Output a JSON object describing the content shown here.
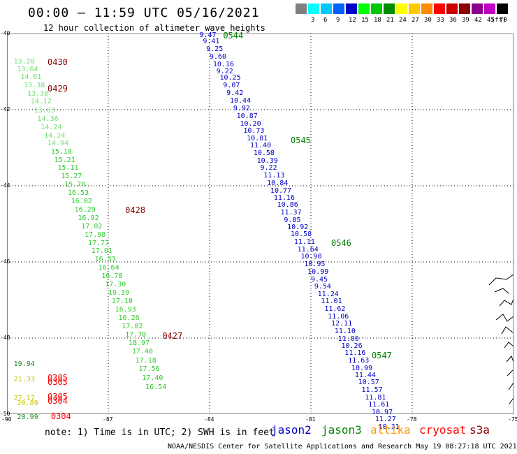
{
  "header": {
    "title": "00:00 – 11:59 UTC 05/16/2021",
    "subtitle": "12 hour collection of altimeter wave heights"
  },
  "legend": {
    "unit": "(ft)",
    "bins": [
      {
        "color": "#808080",
        "label": ""
      },
      {
        "color": "#00ffff",
        "label": "3"
      },
      {
        "color": "#00c8ff",
        "label": "6"
      },
      {
        "color": "#0064ff",
        "label": "9"
      },
      {
        "color": "#0000cd",
        "label": "12"
      },
      {
        "color": "#00ff00",
        "label": "15"
      },
      {
        "color": "#00c800",
        "label": "18"
      },
      {
        "color": "#008c00",
        "label": "21"
      },
      {
        "color": "#ffff00",
        "label": "24"
      },
      {
        "color": "#ffc800",
        "label": "27"
      },
      {
        "color": "#ff8c00",
        "label": "30"
      },
      {
        "color": "#ff0000",
        "label": "33"
      },
      {
        "color": "#c80000",
        "label": "36"
      },
      {
        "color": "#8b0000",
        "label": "39"
      },
      {
        "color": "#8b008b",
        "label": "42"
      },
      {
        "color": "#c000c0",
        "label": "45"
      },
      {
        "color": "#000000",
        "label": "70"
      }
    ]
  },
  "map": {
    "lon_min": -90,
    "lon_max": -75,
    "lat_min": -50,
    "lat_max": -40,
    "lon_ticks": [
      "-90",
      "-87",
      "-84",
      "-81",
      "-78",
      "-75"
    ],
    "lat_ticks": [
      "-40",
      "-42",
      "-44",
      "-46",
      "-48",
      "-50"
    ]
  },
  "tracks": [
    {
      "satellite": "jason3",
      "color": "#70e070",
      "points": [
        {
          "lon": -89.8,
          "lat": -40.75,
          "swh": "13.20"
        },
        {
          "lon": -89.7,
          "lat": -40.95,
          "swh": "13.64"
        },
        {
          "lon": -89.6,
          "lat": -41.15,
          "swh": "14.61"
        },
        {
          "lon": -89.5,
          "lat": -41.38,
          "swh": "13.38"
        },
        {
          "lon": -89.4,
          "lat": -41.6,
          "swh": "13.38"
        },
        {
          "lon": -89.3,
          "lat": -41.8,
          "swh": "14.12"
        },
        {
          "lon": -89.2,
          "lat": -42.03,
          "swh": "13.63"
        },
        {
          "lon": -89.1,
          "lat": -42.25,
          "swh": "14.36"
        },
        {
          "lon": -89.0,
          "lat": -42.47,
          "swh": "14.24"
        },
        {
          "lon": -88.9,
          "lat": -42.69,
          "swh": "14.24"
        },
        {
          "lon": -88.8,
          "lat": -42.9,
          "swh": "14.94"
        }
      ]
    },
    {
      "satellite": "jason3",
      "color": "#2ecc2e",
      "points": [
        {
          "lon": -88.7,
          "lat": -43.12,
          "swh": "15.18"
        },
        {
          "lon": -88.6,
          "lat": -43.34,
          "swh": "15.21"
        },
        {
          "lon": -88.5,
          "lat": -43.55,
          "swh": "15.11"
        },
        {
          "lon": -88.4,
          "lat": -43.76,
          "swh": "15.27"
        },
        {
          "lon": -88.3,
          "lat": -43.98,
          "swh": "15.70"
        },
        {
          "lon": -88.2,
          "lat": -44.2,
          "swh": "16.53"
        },
        {
          "lon": -88.1,
          "lat": -44.42,
          "swh": "16.02"
        },
        {
          "lon": -88.0,
          "lat": -44.64,
          "swh": "16.29"
        },
        {
          "lon": -87.9,
          "lat": -44.86,
          "swh": "16.92"
        },
        {
          "lon": -87.8,
          "lat": -45.08,
          "swh": "17.02"
        },
        {
          "lon": -87.7,
          "lat": -45.3,
          "swh": "17.98"
        },
        {
          "lon": -87.6,
          "lat": -45.52,
          "swh": "17.77"
        },
        {
          "lon": -87.5,
          "lat": -45.73,
          "swh": "17.01"
        },
        {
          "lon": -87.4,
          "lat": -45.95,
          "swh": "16.33"
        },
        {
          "lon": -87.3,
          "lat": -46.17,
          "swh": "16.64"
        },
        {
          "lon": -87.2,
          "lat": -46.38,
          "swh": "16.78"
        },
        {
          "lon": -87.1,
          "lat": -46.6,
          "swh": "17.30"
        },
        {
          "lon": -87.0,
          "lat": -46.82,
          "swh": "19.39"
        },
        {
          "lon": -86.9,
          "lat": -47.04,
          "swh": "17.10"
        },
        {
          "lon": -86.8,
          "lat": -47.26,
          "swh": "16.93"
        },
        {
          "lon": -86.7,
          "lat": -47.48,
          "swh": "16.26"
        },
        {
          "lon": -86.6,
          "lat": -47.71,
          "swh": "17.02"
        },
        {
          "lon": -86.5,
          "lat": -47.93,
          "swh": "17.70"
        },
        {
          "lon": -86.4,
          "lat": -48.15,
          "swh": "18.97"
        },
        {
          "lon": -86.3,
          "lat": -48.37,
          "swh": "17.40"
        },
        {
          "lon": -86.2,
          "lat": -48.6,
          "swh": "17.18"
        },
        {
          "lon": -86.1,
          "lat": -48.83,
          "swh": "17.56"
        },
        {
          "lon": -86.0,
          "lat": -49.07,
          "swh": "17.40"
        },
        {
          "lon": -85.9,
          "lat": -49.3,
          "swh": "16.54"
        }
      ]
    },
    {
      "satellite": "jason2",
      "color": "#0000c8",
      "points": [
        {
          "lon": -84.3,
          "lat": -40.05,
          "swh": "9.47"
        },
        {
          "lon": -84.2,
          "lat": -40.22,
          "swh": "9.41"
        },
        {
          "lon": -84.1,
          "lat": -40.42,
          "swh": "9.25"
        },
        {
          "lon": -84.0,
          "lat": -40.62,
          "swh": "9.60"
        },
        {
          "lon": -83.9,
          "lat": -40.82,
          "swh": "10.16"
        },
        {
          "lon": -83.8,
          "lat": -41.0,
          "swh": "9.22"
        },
        {
          "lon": -83.7,
          "lat": -41.18,
          "swh": "10.25"
        },
        {
          "lon": -83.6,
          "lat": -41.38,
          "swh": "9.07"
        },
        {
          "lon": -83.5,
          "lat": -41.58,
          "swh": "9.42"
        },
        {
          "lon": -83.4,
          "lat": -41.78,
          "swh": "10.44"
        },
        {
          "lon": -83.3,
          "lat": -41.98,
          "swh": "9.92"
        },
        {
          "lon": -83.2,
          "lat": -42.18,
          "swh": "10.87"
        },
        {
          "lon": -83.1,
          "lat": -42.38,
          "swh": "10.20"
        },
        {
          "lon": -83.0,
          "lat": -42.57,
          "swh": "10.73"
        },
        {
          "lon": -82.9,
          "lat": -42.77,
          "swh": "10.81"
        },
        {
          "lon": -82.8,
          "lat": -42.96,
          "swh": "11.40"
        },
        {
          "lon": -82.7,
          "lat": -43.16,
          "swh": "10.58"
        },
        {
          "lon": -82.6,
          "lat": -43.35,
          "swh": "10.39"
        },
        {
          "lon": -82.5,
          "lat": -43.55,
          "swh": "9.22"
        },
        {
          "lon": -82.4,
          "lat": -43.75,
          "swh": "11.13"
        },
        {
          "lon": -82.3,
          "lat": -43.94,
          "swh": "10.84"
        },
        {
          "lon": -82.2,
          "lat": -44.14,
          "swh": "10.77"
        },
        {
          "lon": -82.1,
          "lat": -44.33,
          "swh": "11.16"
        },
        {
          "lon": -82.0,
          "lat": -44.52,
          "swh": "10.86"
        },
        {
          "lon": -81.9,
          "lat": -44.71,
          "swh": "11.37"
        },
        {
          "lon": -81.8,
          "lat": -44.91,
          "swh": "9.85"
        },
        {
          "lon": -81.7,
          "lat": -45.1,
          "swh": "10.92"
        },
        {
          "lon": -81.6,
          "lat": -45.29,
          "swh": "10.58"
        },
        {
          "lon": -81.5,
          "lat": -45.49,
          "swh": "11.11"
        },
        {
          "lon": -81.4,
          "lat": -45.68,
          "swh": "11.64"
        },
        {
          "lon": -81.3,
          "lat": -45.87,
          "swh": "10.90"
        },
        {
          "lon": -81.2,
          "lat": -46.07,
          "swh": "10.95"
        },
        {
          "lon": -81.1,
          "lat": -46.27,
          "swh": "10.99"
        },
        {
          "lon": -81.0,
          "lat": -46.47,
          "swh": "9.45"
        },
        {
          "lon": -80.9,
          "lat": -46.66,
          "swh": "9.54"
        },
        {
          "lon": -80.8,
          "lat": -46.86,
          "swh": "11.24"
        },
        {
          "lon": -80.7,
          "lat": -47.05,
          "swh": "11.01"
        },
        {
          "lon": -80.6,
          "lat": -47.25,
          "swh": "11.62"
        },
        {
          "lon": -80.5,
          "lat": -47.45,
          "swh": "11.06"
        },
        {
          "lon": -80.4,
          "lat": -47.64,
          "swh": "12.11"
        },
        {
          "lon": -80.3,
          "lat": -47.84,
          "swh": "11.10"
        },
        {
          "lon": -80.2,
          "lat": -48.03,
          "swh": "11.00"
        },
        {
          "lon": -80.1,
          "lat": -48.22,
          "swh": "10.26"
        },
        {
          "lon": -80.0,
          "lat": -48.41,
          "swh": "11.16"
        },
        {
          "lon": -79.9,
          "lat": -48.6,
          "swh": "11.63"
        },
        {
          "lon": -79.8,
          "lat": -48.8,
          "swh": "10.99"
        },
        {
          "lon": -79.7,
          "lat": -48.99,
          "swh": "11.44"
        },
        {
          "lon": -79.6,
          "lat": -49.18,
          "swh": "10.57"
        },
        {
          "lon": -79.5,
          "lat": -49.38,
          "swh": "11.57"
        },
        {
          "lon": -79.4,
          "lat": -49.58,
          "swh": "11.81"
        },
        {
          "lon": -79.3,
          "lat": -49.77,
          "swh": "11.61"
        },
        {
          "lon": -79.2,
          "lat": -49.96,
          "swh": "10.97"
        },
        {
          "lon": -79.1,
          "lat": -50.15,
          "swh": "11.27"
        },
        {
          "lon": -79.0,
          "lat": -50.35,
          "swh": "10.31"
        }
      ]
    },
    {
      "satellite": "cryosat",
      "color": "#208a20",
      "points": [
        {
          "lon": -89.8,
          "lat": -48.7,
          "swh": "19.94"
        }
      ]
    },
    {
      "satellite": "s3a",
      "color": "#c8c800",
      "points": [
        {
          "lon": -89.8,
          "lat": -49.1,
          "swh": "21.33"
        },
        {
          "lon": -89.8,
          "lat": -49.6,
          "swh": "27.17"
        },
        {
          "lon": -89.7,
          "lat": -49.72,
          "swh": "20.89"
        }
      ]
    },
    {
      "satellite": "s3a",
      "color": "#228b22",
      "points": [
        {
          "lon": -89.7,
          "lat": -50.1,
          "swh": "20.99"
        }
      ]
    }
  ],
  "time_labels": [
    {
      "text": "0430",
      "lon": -88.8,
      "lat": -40.75,
      "color": "#8b0000"
    },
    {
      "text": "0429",
      "lon": -88.8,
      "lat": -41.45,
      "color": "#8b0000"
    },
    {
      "text": "0428",
      "lon": -86.5,
      "lat": -44.65,
      "color": "#8b0000"
    },
    {
      "text": "0427",
      "lon": -85.4,
      "lat": -47.95,
      "color": "#8b0000"
    },
    {
      "text": "0305",
      "lon": -88.8,
      "lat": -49.05,
      "color": "#ff0000"
    },
    {
      "text": "0305",
      "lon": -88.8,
      "lat": -49.15,
      "color": "#ff0000"
    },
    {
      "text": "0305",
      "lon": -88.8,
      "lat": -49.55,
      "color": "#ff0000"
    },
    {
      "text": "0304",
      "lon": -88.8,
      "lat": -49.65,
      "color": "#ff0000"
    },
    {
      "text": "0304",
      "lon": -88.7,
      "lat": -50.05,
      "color": "#ff0000"
    },
    {
      "text": "0544",
      "lon": -83.6,
      "lat": -40.05,
      "color": "#008000"
    },
    {
      "text": "0545",
      "lon": -81.6,
      "lat": -42.8,
      "color": "#008000"
    },
    {
      "text": "0546",
      "lon": -80.4,
      "lat": -45.5,
      "color": "#008000"
    },
    {
      "text": "0547",
      "lon": -79.2,
      "lat": -48.45,
      "color": "#008000"
    }
  ],
  "footer": {
    "note": "note: 1) Time is in UTC; 2) SWH is in feet",
    "satellites": [
      {
        "name": "jason2",
        "color": "#0000c8"
      },
      {
        "name": "jason3",
        "color": "#008800"
      },
      {
        "name": "altika",
        "color": "#ff9900"
      },
      {
        "name": "cryosat",
        "color": "#ff0000"
      },
      {
        "name": "s3a",
        "color": "#8b0000"
      }
    ],
    "credit": "NOAA/NESDIS Center for Satellite Applications and Research    May 19 08:27:18 UTC 2021"
  }
}
